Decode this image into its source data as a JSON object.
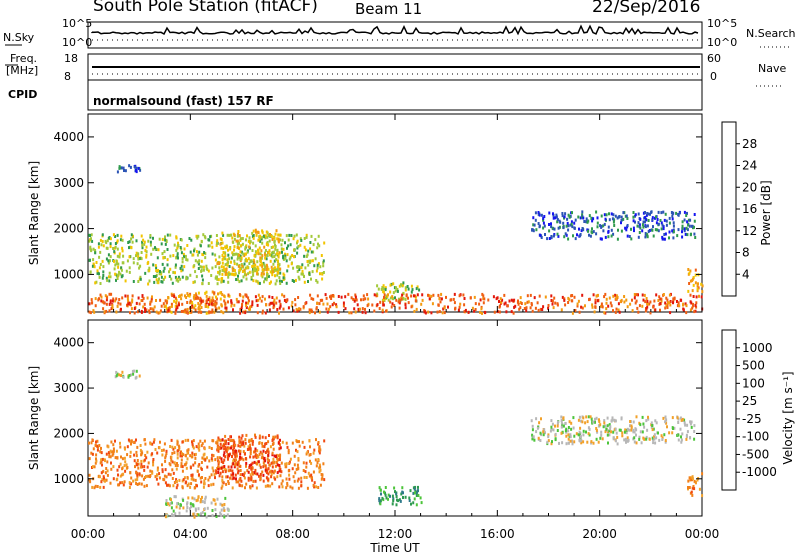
{
  "header": {
    "title": "South Pole Station (fitACF)",
    "beam": "Beam 11",
    "date": "22/Sep/2016"
  },
  "status_panels": {
    "nsky_label": "N.Sky",
    "nsearch_label": "N.Search",
    "nsky_ticks": [
      "10^5",
      "10^0"
    ],
    "nsearch_ticks": [
      "10^5",
      "10^0"
    ],
    "freq_label_line1": "Freq.",
    "freq_label_line2": "[MHz]",
    "freq_ticks": [
      "18",
      "8"
    ],
    "nave_label": "Nave",
    "nave_ticks": [
      "60",
      "0"
    ],
    "cpid_label": "CPID",
    "cpid_text": "normalsound (fast) 157 RF"
  },
  "chart_data": [
    {
      "type": "heatmap",
      "name": "power",
      "ylabel": "Slant Range [km]",
      "xlabel": "Time UT",
      "xlim": [
        0,
        24
      ],
      "ylim": [
        180,
        4500
      ],
      "y_ticks": [
        "1000",
        "2000",
        "3000",
        "4000"
      ],
      "y_tick_values": [
        1000,
        2000,
        3000,
        4000
      ],
      "x_ticks": [
        "00:00",
        "04:00",
        "08:00",
        "12:00",
        "16:00",
        "20:00",
        "00:00"
      ],
      "x_tick_values": [
        0,
        4,
        8,
        12,
        16,
        20,
        24
      ],
      "colorbar": {
        "label": "Power [dB]",
        "ticks": [
          "4",
          "8",
          "12",
          "16",
          "20",
          "24",
          "28"
        ],
        "colors": [
          "#1515f0",
          "#2c54b5",
          "#2f9a4c",
          "#a3c93a",
          "#f2c400",
          "#f39a10",
          "#f05e12",
          "#e3170b"
        ]
      },
      "regions": [
        {
          "t0": 0.95,
          "t1": 2.0,
          "r0": 3250,
          "r1": 3420,
          "level": 1
        },
        {
          "t0": 0.0,
          "t1": 9.2,
          "r0": 820,
          "r1": 1900,
          "level": 3
        },
        {
          "t0": 5.0,
          "t1": 7.5,
          "r0": 1000,
          "r1": 2000,
          "level": 4
        },
        {
          "t0": 3.0,
          "t1": 5.5,
          "r0": 180,
          "r1": 650,
          "level": 5
        },
        {
          "t0": 11.2,
          "t1": 13.0,
          "r0": 450,
          "r1": 850,
          "level": 3
        },
        {
          "t0": 17.3,
          "t1": 23.7,
          "r0": 1800,
          "r1": 2400,
          "level": 1
        },
        {
          "t0": 23.4,
          "t1": 24.0,
          "r0": 650,
          "r1": 1150,
          "level": 5
        },
        {
          "t0": 0.0,
          "t1": 24.0,
          "r0": 180,
          "r1": 600,
          "level": 6
        }
      ]
    },
    {
      "type": "heatmap",
      "name": "velocity",
      "ylabel": "Slant Range [km]",
      "xlabel": "Time UT",
      "xlim": [
        0,
        24
      ],
      "ylim": [
        180,
        4500
      ],
      "y_ticks": [
        "1000",
        "2000",
        "3000",
        "4000"
      ],
      "y_tick_values": [
        1000,
        2000,
        3000,
        4000
      ],
      "x_ticks": [
        "00:00",
        "04:00",
        "08:00",
        "12:00",
        "16:00",
        "20:00",
        "00:00"
      ],
      "x_tick_values": [
        0,
        4,
        8,
        12,
        16,
        20,
        24
      ],
      "colorbar": {
        "label": "Velocity [m s⁻¹]",
        "ticks": [
          "1000",
          "500",
          "100",
          "25",
          "-25",
          "-100",
          "-500",
          "-1000"
        ],
        "colors": [
          "#2a2fc8",
          "#2f7a8a",
          "#2e9a50",
          "#4cc43a",
          "#b7b7b7",
          "#f2a12a",
          "#f28018",
          "#f24a10",
          "#e3120b"
        ]
      },
      "regions": [
        {
          "t0": 0.95,
          "t1": 2.0,
          "r0": 3250,
          "r1": 3420,
          "level": 4
        },
        {
          "t0": 0.0,
          "t1": 9.2,
          "r0": 820,
          "r1": 1900,
          "level": 6
        },
        {
          "t0": 5.0,
          "t1": 7.5,
          "r0": 1000,
          "r1": 2000,
          "level": 7
        },
        {
          "t0": 3.0,
          "t1": 5.5,
          "r0": 180,
          "r1": 650,
          "level": 4
        },
        {
          "t0": 11.2,
          "t1": 13.0,
          "r0": 450,
          "r1": 850,
          "level": 2
        },
        {
          "t0": 17.3,
          "t1": 23.7,
          "r0": 1800,
          "r1": 2400,
          "level": 4
        },
        {
          "t0": 23.4,
          "t1": 24.0,
          "r0": 650,
          "r1": 1150,
          "level": 6
        }
      ]
    }
  ]
}
